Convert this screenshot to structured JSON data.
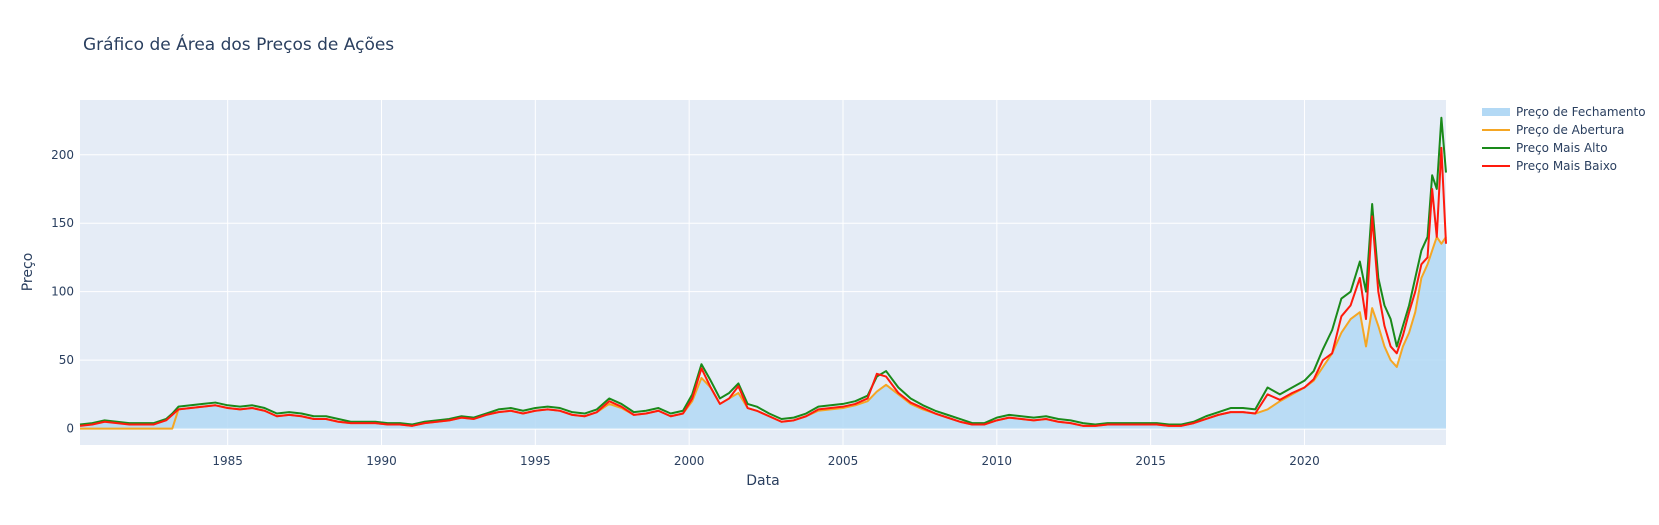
{
  "chart_data": {
    "type": "area",
    "title": "Gráfico de Área dos Preços de Ações",
    "xlabel": "Data",
    "ylabel": "Preço",
    "xlim": [
      1980.2,
      2024.6
    ],
    "ylim": [
      -12,
      240
    ],
    "x_ticks": [
      1985,
      1990,
      1995,
      2000,
      2005,
      2010,
      2015,
      2020
    ],
    "x_tick_labels": [
      "1985",
      "1990",
      "1995",
      "2000",
      "2005",
      "2010",
      "2015",
      "2020"
    ],
    "y_ticks": [
      0,
      50,
      100,
      150,
      200
    ],
    "y_tick_labels": [
      "0",
      "50",
      "100",
      "150",
      "200"
    ],
    "grid": true,
    "legend_position": "top-right",
    "x": [
      1980.2,
      1980.6,
      1981.0,
      1981.4,
      1981.8,
      1982.2,
      1982.6,
      1983.0,
      1983.2,
      1983.4,
      1983.8,
      1984.2,
      1984.6,
      1985.0,
      1985.4,
      1985.8,
      1986.2,
      1986.6,
      1987.0,
      1987.4,
      1987.8,
      1988.2,
      1988.6,
      1989.0,
      1989.4,
      1989.8,
      1990.2,
      1990.6,
      1991.0,
      1991.4,
      1991.8,
      1992.2,
      1992.6,
      1993.0,
      1993.4,
      1993.8,
      1994.2,
      1994.6,
      1995.0,
      1995.4,
      1995.8,
      1996.2,
      1996.6,
      1997.0,
      1997.4,
      1997.8,
      1998.2,
      1998.6,
      1999.0,
      1999.4,
      1999.8,
      2000.1,
      2000.4,
      2000.7,
      2001.0,
      2001.3,
      2001.6,
      2001.9,
      2002.2,
      2002.6,
      2003.0,
      2003.4,
      2003.8,
      2004.2,
      2004.6,
      2005.0,
      2005.4,
      2005.8,
      2006.1,
      2006.4,
      2006.8,
      2007.2,
      2007.6,
      2008.0,
      2008.4,
      2008.8,
      2009.2,
      2009.6,
      2010.0,
      2010.4,
      2010.8,
      2011.2,
      2011.6,
      2012.0,
      2012.4,
      2012.8,
      2013.2,
      2013.6,
      2014.0,
      2014.4,
      2014.8,
      2015.2,
      2015.6,
      2016.0,
      2016.4,
      2016.8,
      2017.2,
      2017.6,
      2018.0,
      2018.4,
      2018.8,
      2019.2,
      2019.6,
      2020.0,
      2020.3,
      2020.6,
      2020.9,
      2021.2,
      2021.5,
      2021.8,
      2022.0,
      2022.2,
      2022.4,
      2022.6,
      2022.8,
      2023.0,
      2023.2,
      2023.4,
      2023.6,
      2023.8,
      2024.0,
      2024.15,
      2024.3,
      2024.45,
      2024.6
    ],
    "series": [
      {
        "name": "Preço de Fechamento",
        "values": [
          2,
          3,
          5,
          4,
          3,
          3,
          3,
          6,
          10,
          14,
          15,
          16,
          17,
          15,
          14,
          15,
          13,
          9,
          10,
          9,
          7,
          7,
          5,
          4,
          4,
          4,
          3,
          3,
          2,
          4,
          5,
          6,
          8,
          7,
          10,
          12,
          13,
          11,
          13,
          14,
          13,
          10,
          9,
          12,
          18,
          15,
          10,
          11,
          13,
          9,
          11,
          20,
          37,
          30,
          18,
          22,
          26,
          15,
          13,
          9,
          5,
          6,
          9,
          13,
          14,
          15,
          17,
          20,
          27,
          32,
          25,
          18,
          14,
          11,
          8,
          5,
          3,
          3,
          6,
          8,
          7,
          6,
          7,
          5,
          4,
          2,
          2,
          3,
          3,
          3,
          3,
          3,
          2,
          2,
          4,
          7,
          10,
          12,
          12,
          11,
          14,
          20,
          25,
          30,
          35,
          45,
          55,
          70,
          80,
          85,
          60,
          88,
          75,
          60,
          50,
          45,
          60,
          70,
          85,
          110,
          120,
          130,
          140,
          135,
          140
        ]
      },
      {
        "name": "Preço de Abertura",
        "values": [
          0,
          0,
          0,
          0,
          0,
          0,
          0,
          0,
          0,
          14,
          15,
          16,
          17,
          15,
          14,
          15,
          13,
          9,
          10,
          9,
          7,
          7,
          5,
          4,
          4,
          4,
          3,
          3,
          2,
          4,
          5,
          6,
          8,
          7,
          10,
          12,
          13,
          11,
          13,
          14,
          13,
          10,
          9,
          12,
          18,
          15,
          10,
          11,
          13,
          9,
          11,
          20,
          37,
          30,
          18,
          22,
          26,
          15,
          13,
          9,
          5,
          6,
          9,
          13,
          14,
          15,
          17,
          20,
          27,
          32,
          25,
          18,
          14,
          11,
          8,
          5,
          3,
          3,
          6,
          8,
          7,
          6,
          7,
          5,
          4,
          2,
          2,
          3,
          3,
          3,
          3,
          3,
          2,
          2,
          4,
          7,
          10,
          12,
          12,
          11,
          14,
          20,
          25,
          30,
          35,
          45,
          55,
          70,
          80,
          85,
          60,
          88,
          75,
          60,
          50,
          45,
          60,
          70,
          85,
          110,
          120,
          130,
          140,
          135,
          140
        ]
      },
      {
        "name": "Preço Mais Alto",
        "values": [
          3,
          4,
          6,
          5,
          4,
          4,
          4,
          7,
          11,
          16,
          17,
          18,
          19,
          17,
          16,
          17,
          15,
          11,
          12,
          11,
          9,
          9,
          7,
          5,
          5,
          5,
          4,
          4,
          3,
          5,
          6,
          7,
          9,
          8,
          11,
          14,
          15,
          13,
          15,
          16,
          15,
          12,
          11,
          14,
          22,
          18,
          12,
          13,
          15,
          11,
          13,
          25,
          47,
          35,
          22,
          26,
          33,
          18,
          16,
          11,
          7,
          8,
          11,
          16,
          17,
          18,
          20,
          24,
          38,
          42,
          30,
          22,
          17,
          13,
          10,
          7,
          4,
          4,
          8,
          10,
          9,
          8,
          9,
          7,
          6,
          4,
          3,
          4,
          4,
          4,
          4,
          4,
          3,
          3,
          5,
          9,
          12,
          15,
          15,
          14,
          30,
          25,
          30,
          35,
          42,
          58,
          72,
          95,
          100,
          122,
          100,
          164,
          110,
          90,
          80,
          60,
          75,
          90,
          110,
          130,
          140,
          185,
          175,
          227,
          187
        ]
      },
      {
        "name": "Preço Mais Baixo",
        "values": [
          2,
          3,
          5,
          4,
          3,
          3,
          3,
          6,
          10,
          14,
          15,
          16,
          17,
          15,
          14,
          15,
          13,
          9,
          10,
          9,
          7,
          7,
          5,
          4,
          4,
          4,
          3,
          3,
          2,
          4,
          5,
          6,
          8,
          7,
          10,
          12,
          13,
          11,
          13,
          14,
          13,
          10,
          9,
          12,
          20,
          16,
          10,
          11,
          13,
          9,
          11,
          22,
          44,
          30,
          18,
          22,
          31,
          15,
          13,
          9,
          5,
          6,
          9,
          14,
          15,
          16,
          18,
          22,
          40,
          38,
          26,
          19,
          15,
          11,
          8,
          5,
          3,
          3,
          6,
          8,
          7,
          6,
          7,
          5,
          4,
          2,
          2,
          3,
          3,
          3,
          3,
          3,
          2,
          2,
          4,
          7,
          10,
          12,
          12,
          11,
          25,
          21,
          26,
          30,
          36,
          50,
          55,
          82,
          90,
          110,
          80,
          155,
          100,
          75,
          60,
          55,
          68,
          85,
          100,
          120,
          125,
          175,
          140,
          205,
          135
        ]
      }
    ],
    "colors": {
      "Preço de Fechamento": "#b3d9f5",
      "Preço de Abertura": "#f5a623",
      "Preço Mais Alto": "#1a8a1a",
      "Preço Mais Baixo": "#ff1a0d",
      "plot_bg": "#e5ecf6",
      "grid": "#ffffff"
    }
  }
}
